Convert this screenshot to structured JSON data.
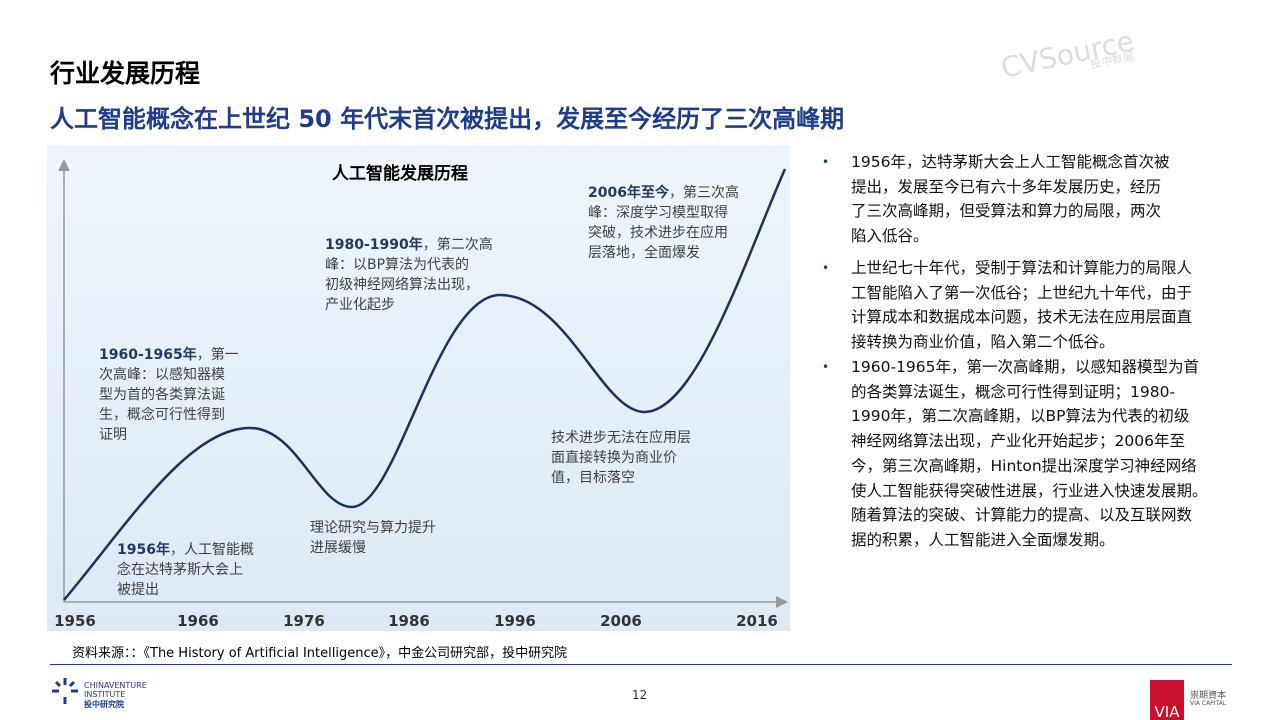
{
  "header": {
    "title": "行业发展历程",
    "subtitle": "人工智能概念在上世纪 50 年代末首次被提出，发展至今经历了三次高峰期"
  },
  "chart": {
    "title": "人工智能发展历程",
    "x_labels": [
      "1956",
      "1966",
      "1976",
      "1986",
      "1996",
      "2006",
      "2016"
    ],
    "annotations": [
      {
        "bold": "1956年",
        "lines": [
          "，人工智能概",
          "念在达特茅斯大会上",
          "被提出"
        ]
      },
      {
        "bold": "1960-1965年",
        "lines": [
          "，第一",
          "次高峰：以感知器模",
          "型为首的各类算法诞",
          "生，概念可行性得到",
          "证明"
        ]
      },
      {
        "bold": "1980-1990年",
        "lines": [
          "，第二次高",
          "峰：以BP算法为代表的",
          "初级神经网络算法出现，",
          "产业化起步"
        ]
      },
      {
        "bold": "2006年至今",
        "lines": [
          "，第三次高",
          "峰：深度学习模型取得",
          "突破，技术进步在应用",
          "层落地，全面爆发"
        ]
      },
      {
        "lines": [
          "理论研究与算力提升",
          "进展缓慢"
        ]
      },
      {
        "lines": [
          "技术进步无法在应用层",
          "面直接转换为商业价",
          "值，目标落空"
        ]
      }
    ]
  },
  "bullets": [
    {
      "lines": [
        "1956年，达特茅斯大会上人工智能概念首次被",
        "提出，发展至今已有六十多年发展历史，经历",
        "了三次高峰期，但受算法和算力的局限，两次",
        "陷入低谷。"
      ]
    },
    {
      "lines": [
        "上世纪七十年代，受制于算法和计算能力的局限人",
        "工智能陷入了第一次低谷；上世纪九十年代，由于",
        "计算成本和数据成本问题，技术无法在应用层面直",
        "接转换为商业价值，陷入第二个低谷。"
      ]
    },
    {
      "lines": [
        "1960-1965年，第一次高峰期，以感知器模型为首",
        "的各类算法诞生，概念可行性得到证明；1980-",
        "1990年，第二次高峰期，以BP算法为代表的初级",
        "神经网络算法出现，产业化开始起步；2006年至",
        "今，第三次高峰期，Hinton提出深度学习神经网络",
        "使人工智能获得突破性进展，行业进入快速发展期。",
        "随着算法的突破、计算能力的提高、以及互联网数",
        "据的积累，人工智能进入全面爆发期。"
      ]
    }
  ],
  "source": "资料来源：：《The History of Artificial Intelligence》，中金公司研究部，投中研究院",
  "page_number": "12",
  "logo_left": {
    "line1": "CHINAVENTURE",
    "line2": "INSTITUTE",
    "line3": "投中研究院"
  },
  "logo_right": {
    "mark": "VIA",
    "name": "崇期資本",
    "sub": "VIA CAPITAL"
  },
  "watermark": {
    "brand": "CVSource",
    "cn": "投中数据"
  }
}
